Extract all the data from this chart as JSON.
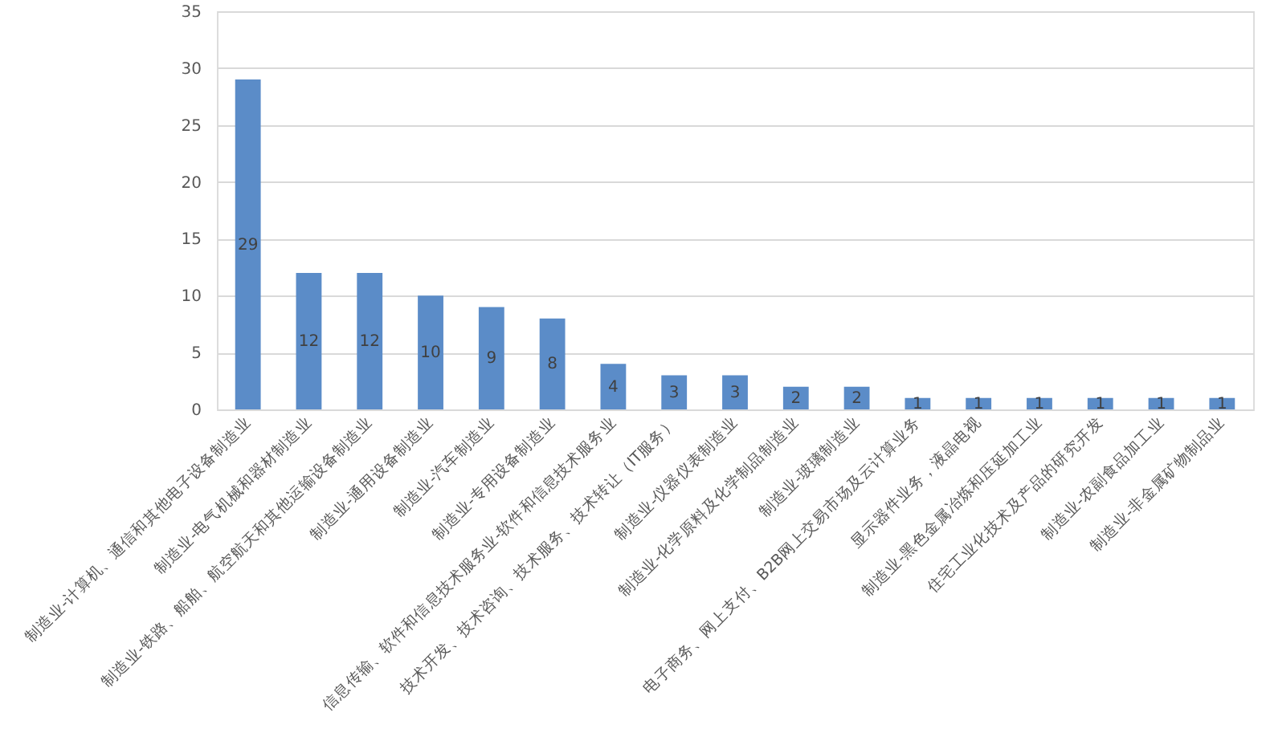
{
  "chart_data": {
    "type": "bar",
    "categories": [
      "制造业-计算机、通信和其他电子设备制造业",
      "制造业-电气机械和器材制造业",
      "制造业-铁路、船舶、航空航天和其他运输设备制造业",
      "制造业-通用设备制造业",
      "制造业-汽车制造业",
      "制造业-专用设备制造业",
      "信息传输、软件和信息技术服务业-软件和信息技术服务业",
      "技术开发、技术咨询、技术服务、技术转让（IT服务）",
      "制造业-仪器仪表制造业",
      "制造业-化学原料及化学制品制造业",
      "制造业-玻璃制造业",
      "电子商务、网上支付、B2B网上交易市场及云计算业务",
      "显示器件业务，液晶电视",
      "制造业-黑色金属冶炼和压延加工业",
      "住宅工业化技术及产品的研究开发",
      "制造业-农副食品加工业",
      "制造业-非金属矿物制品业"
    ],
    "values": [
      29,
      12,
      12,
      10,
      9,
      8,
      4,
      3,
      3,
      2,
      2,
      1,
      1,
      1,
      1,
      1,
      1
    ],
    "color": "#5b8cc8",
    "ylim": [
      0,
      35
    ],
    "yticks": [
      0,
      5,
      10,
      15,
      20,
      25,
      30,
      35
    ],
    "grid": "y",
    "data_labels": true
  }
}
